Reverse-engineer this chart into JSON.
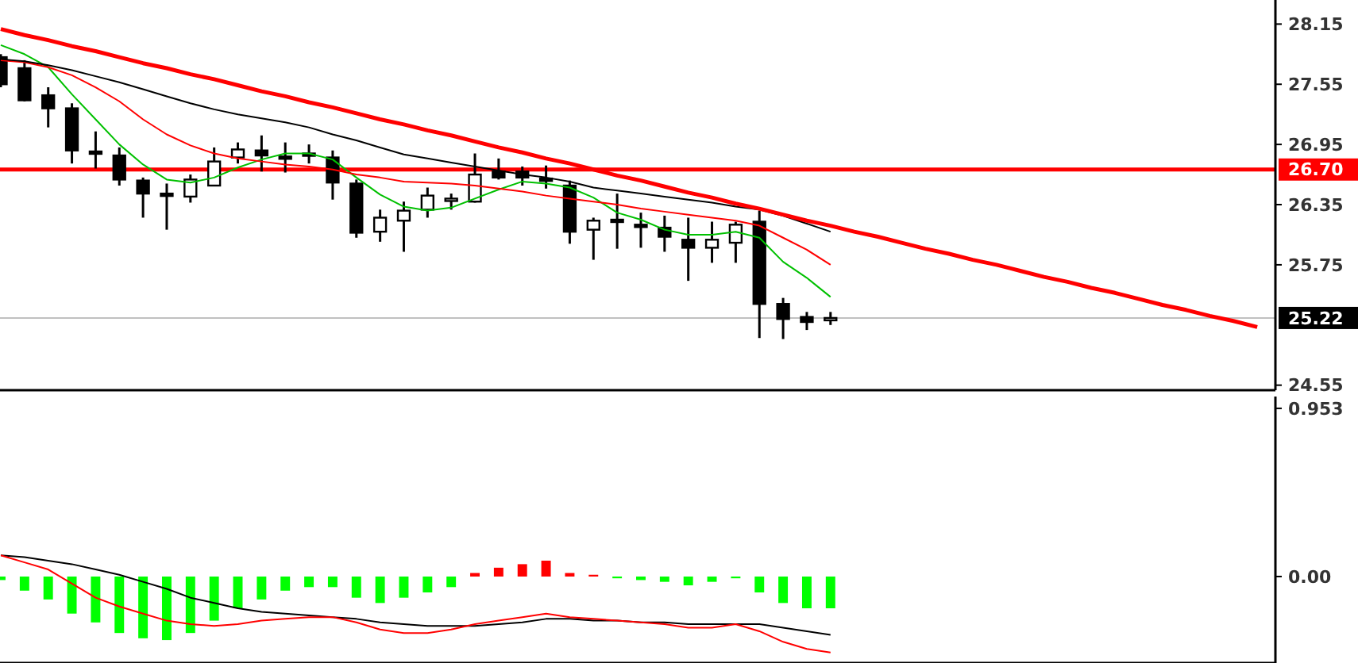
{
  "chart_data": [
    {
      "type": "candlestick",
      "categories": [
        null,
        null,
        null,
        null,
        null,
        null,
        null,
        null,
        null,
        null,
        null,
        null,
        null,
        null,
        null,
        null,
        null,
        null,
        null,
        null,
        null,
        null,
        null,
        null,
        null,
        null,
        null,
        null,
        null,
        null,
        null,
        null,
        null,
        null,
        null,
        null,
        null,
        null,
        null,
        null,
        null,
        null,
        null,
        null,
        null,
        null,
        null,
        null,
        null,
        null,
        null,
        null,
        null,
        null
      ],
      "ohlc": [
        [
          27.82,
          27.85,
          27.52,
          27.55
        ],
        [
          27.71,
          27.79,
          27.38,
          27.39
        ],
        [
          27.44,
          27.52,
          27.12,
          27.31
        ],
        [
          27.31,
          27.36,
          26.76,
          26.89
        ],
        [
          26.88,
          27.08,
          26.71,
          26.86
        ],
        [
          26.84,
          26.92,
          26.54,
          26.6
        ],
        [
          26.59,
          26.62,
          26.22,
          26.46
        ],
        [
          26.46,
          26.56,
          26.1,
          26.45
        ],
        [
          26.43,
          26.65,
          26.37,
          26.6
        ],
        [
          26.54,
          26.92,
          26.54,
          26.78
        ],
        [
          26.82,
          26.97,
          26.76,
          26.9
        ],
        [
          26.89,
          27.04,
          26.68,
          26.84
        ],
        [
          26.83,
          26.97,
          26.67,
          26.82
        ],
        [
          26.86,
          26.95,
          26.76,
          26.85
        ],
        [
          26.82,
          26.89,
          26.4,
          26.57
        ],
        [
          26.56,
          26.6,
          26.02,
          26.07
        ],
        [
          26.08,
          26.3,
          25.98,
          26.22
        ],
        [
          26.19,
          26.38,
          25.88,
          26.29
        ],
        [
          26.3,
          26.52,
          26.22,
          26.44
        ],
        [
          26.4,
          26.46,
          26.3,
          26.41
        ],
        [
          26.38,
          26.86,
          26.37,
          26.65
        ],
        [
          26.68,
          26.81,
          26.6,
          26.62
        ],
        [
          26.68,
          26.73,
          26.54,
          26.62
        ],
        [
          26.61,
          26.74,
          26.51,
          26.6
        ],
        [
          26.54,
          26.59,
          25.96,
          26.08
        ],
        [
          26.1,
          26.22,
          25.8,
          26.19
        ],
        [
          26.2,
          26.46,
          25.91,
          26.19
        ],
        [
          26.15,
          26.27,
          25.92,
          26.14
        ],
        [
          26.12,
          26.24,
          25.88,
          26.03
        ],
        [
          26.0,
          26.22,
          25.59,
          25.92
        ],
        [
          25.92,
          26.18,
          25.77,
          26.0
        ],
        [
          25.97,
          26.18,
          25.77,
          26.15
        ],
        [
          26.18,
          26.29,
          25.02,
          25.36
        ],
        [
          25.36,
          25.42,
          25.01,
          25.21
        ],
        [
          25.23,
          25.28,
          25.1,
          25.18
        ],
        [
          25.21,
          25.28,
          25.15,
          25.22
        ],
        null,
        null,
        null,
        null,
        null,
        null,
        null,
        null,
        null,
        null,
        null,
        null,
        null,
        null,
        null,
        null,
        null,
        null
      ],
      "series": [
        {
          "type": "line",
          "color": "#00c000",
          "values": [
            27.94,
            27.85,
            27.72,
            27.45,
            27.2,
            26.95,
            26.75,
            26.6,
            26.57,
            26.62,
            26.72,
            26.8,
            26.86,
            26.86,
            26.8,
            26.62,
            26.45,
            26.33,
            26.29,
            26.32,
            26.41,
            26.5,
            26.58,
            26.56,
            26.52,
            26.42,
            26.27,
            26.2,
            26.1,
            26.05,
            26.05,
            26.08,
            26.02,
            25.78,
            25.62,
            25.43,
            null,
            null,
            null,
            null,
            null,
            null,
            null,
            null,
            null,
            null,
            null,
            null,
            null,
            null,
            null,
            null,
            null,
            null
          ]
        },
        {
          "type": "line",
          "color": "#ff0000",
          "values": [
            27.79,
            27.77,
            27.72,
            27.64,
            27.52,
            27.38,
            27.2,
            27.05,
            26.94,
            26.86,
            26.81,
            26.78,
            26.75,
            26.73,
            26.7,
            26.65,
            26.62,
            26.58,
            26.57,
            26.56,
            26.54,
            26.51,
            26.48,
            26.44,
            26.41,
            26.38,
            26.35,
            26.31,
            26.28,
            26.25,
            26.22,
            26.19,
            26.14,
            26.02,
            25.9,
            25.75,
            null,
            null,
            null,
            null,
            null,
            null,
            null,
            null,
            null,
            null,
            null,
            null,
            null,
            null,
            null,
            null,
            null,
            null
          ]
        },
        {
          "type": "line",
          "color": "#000000",
          "values": [
            27.8,
            27.78,
            27.74,
            27.69,
            27.63,
            27.57,
            27.5,
            27.43,
            27.36,
            27.3,
            27.25,
            27.21,
            27.17,
            27.12,
            27.05,
            26.99,
            26.92,
            26.85,
            26.81,
            26.77,
            26.73,
            26.69,
            26.65,
            26.62,
            26.58,
            26.52,
            26.49,
            26.46,
            26.43,
            26.4,
            26.37,
            26.33,
            26.3,
            26.24,
            26.16,
            26.08,
            null,
            null,
            null,
            null,
            null,
            null,
            null,
            null,
            null,
            null,
            null,
            null,
            null,
            null,
            null,
            null,
            null,
            null
          ]
        },
        {
          "type": "line",
          "color": "#ff0000",
          "values": [
            28.1,
            28.04,
            27.99,
            27.93,
            27.88,
            27.82,
            27.76,
            27.71,
            27.65,
            27.6,
            27.54,
            27.48,
            27.43,
            27.37,
            27.32,
            27.26,
            27.2,
            27.15,
            27.09,
            27.04,
            26.98,
            26.92,
            26.87,
            26.81,
            26.76,
            26.7,
            26.64,
            26.59,
            26.53,
            26.47,
            26.42,
            26.36,
            26.31,
            26.25,
            26.19,
            26.14,
            26.08,
            26.03,
            25.97,
            25.91,
            25.86,
            25.8,
            25.75,
            25.69,
            25.63,
            25.58,
            25.52,
            25.47,
            25.41,
            25.35,
            25.3,
            25.24,
            25.19,
            25.13
          ]
        }
      ],
      "ylim": [
        24.5,
        28.39
      ],
      "yticks": [
        28.15,
        27.55,
        26.95,
        26.35,
        25.75,
        24.55
      ],
      "tick_labels": "y",
      "ref_lines": [
        {
          "axis": "y",
          "value": 26.7,
          "label": "26.70",
          "color": "#ff0000"
        },
        {
          "axis": "y",
          "value": 25.22,
          "label": "25.22",
          "color": "#c0c0c0"
        }
      ]
    },
    {
      "type": "bar",
      "categories": [
        null,
        null,
        null,
        null,
        null,
        null,
        null,
        null,
        null,
        null,
        null,
        null,
        null,
        null,
        null,
        null,
        null,
        null,
        null,
        null,
        null,
        null,
        null,
        null,
        null,
        null,
        null,
        null,
        null,
        null,
        null,
        null,
        null,
        null,
        null,
        null,
        null,
        null,
        null,
        null,
        null,
        null,
        null,
        null,
        null,
        null,
        null,
        null,
        null,
        null,
        null,
        null,
        null,
        null
      ],
      "series": [
        {
          "type": "bar",
          "values": [
            -0.02,
            -0.08,
            -0.13,
            -0.21,
            -0.26,
            -0.32,
            -0.35,
            -0.36,
            -0.32,
            -0.25,
            -0.18,
            -0.13,
            -0.08,
            -0.06,
            -0.06,
            -0.12,
            -0.15,
            -0.12,
            -0.09,
            -0.06,
            0.02,
            0.05,
            0.07,
            0.09,
            0.02,
            0.01,
            -0.01,
            -0.02,
            -0.03,
            -0.05,
            -0.03,
            -0.01,
            -0.09,
            -0.15,
            -0.18,
            -0.18,
            null,
            null,
            null,
            null,
            null,
            null,
            null,
            null,
            null,
            null,
            null,
            null,
            null,
            null,
            null,
            null,
            null,
            null
          ],
          "colors": [
            "#00ff00",
            "#00ff00",
            "#00ff00",
            "#00ff00",
            "#00ff00",
            "#00ff00",
            "#00ff00",
            "#00ff00",
            "#00ff00",
            "#00ff00",
            "#00ff00",
            "#00ff00",
            "#00ff00",
            "#00ff00",
            "#00ff00",
            "#00ff00",
            "#00ff00",
            "#00ff00",
            "#00ff00",
            "#00ff00",
            "#ff0000",
            "#ff0000",
            "#ff0000",
            "#ff0000",
            "#ff0000",
            "#ff0000",
            "#00ff00",
            "#00ff00",
            "#00ff00",
            "#00ff00",
            "#00ff00",
            "#00ff00",
            "#00ff00",
            "#00ff00",
            "#00ff00",
            "#00ff00",
            null,
            null,
            null,
            null,
            null,
            null,
            null,
            null,
            null,
            null,
            null,
            null,
            null,
            null,
            null,
            null,
            null,
            null
          ]
        },
        {
          "type": "line",
          "color": "#000000",
          "values": [
            0.12,
            0.11,
            0.09,
            0.07,
            0.04,
            0.01,
            -0.03,
            -0.07,
            -0.12,
            -0.15,
            -0.18,
            -0.2,
            -0.21,
            -0.22,
            -0.23,
            -0.24,
            -0.26,
            -0.27,
            -0.28,
            -0.28,
            -0.28,
            -0.27,
            -0.26,
            -0.24,
            -0.24,
            -0.25,
            -0.25,
            -0.26,
            -0.26,
            -0.27,
            -0.27,
            -0.27,
            -0.27,
            -0.29,
            -0.31,
            -0.33,
            null,
            null,
            null,
            null,
            null,
            null,
            null,
            null,
            null,
            null,
            null,
            null,
            null,
            null,
            null,
            null,
            null,
            null
          ]
        },
        {
          "type": "line",
          "color": "#ff0000",
          "values": [
            0.12,
            0.08,
            0.04,
            -0.04,
            -0.12,
            -0.17,
            -0.21,
            -0.25,
            -0.27,
            -0.28,
            -0.27,
            -0.25,
            -0.24,
            -0.23,
            -0.23,
            -0.26,
            -0.3,
            -0.32,
            -0.32,
            -0.3,
            -0.27,
            -0.25,
            -0.23,
            -0.21,
            -0.23,
            -0.24,
            -0.25,
            -0.26,
            -0.27,
            -0.29,
            -0.29,
            -0.27,
            -0.31,
            -0.37,
            -0.41,
            -0.43,
            null,
            null,
            null,
            null,
            null,
            null,
            null,
            null,
            null,
            null,
            null,
            null,
            null,
            null,
            null,
            null,
            null,
            null
          ]
        }
      ],
      "ylim": [
        -0.49,
        1.02
      ],
      "yticks": [
        0.953,
        {
          "value": 0,
          "label": "0.00"
        }
      ],
      "tick_labels": "y"
    }
  ]
}
